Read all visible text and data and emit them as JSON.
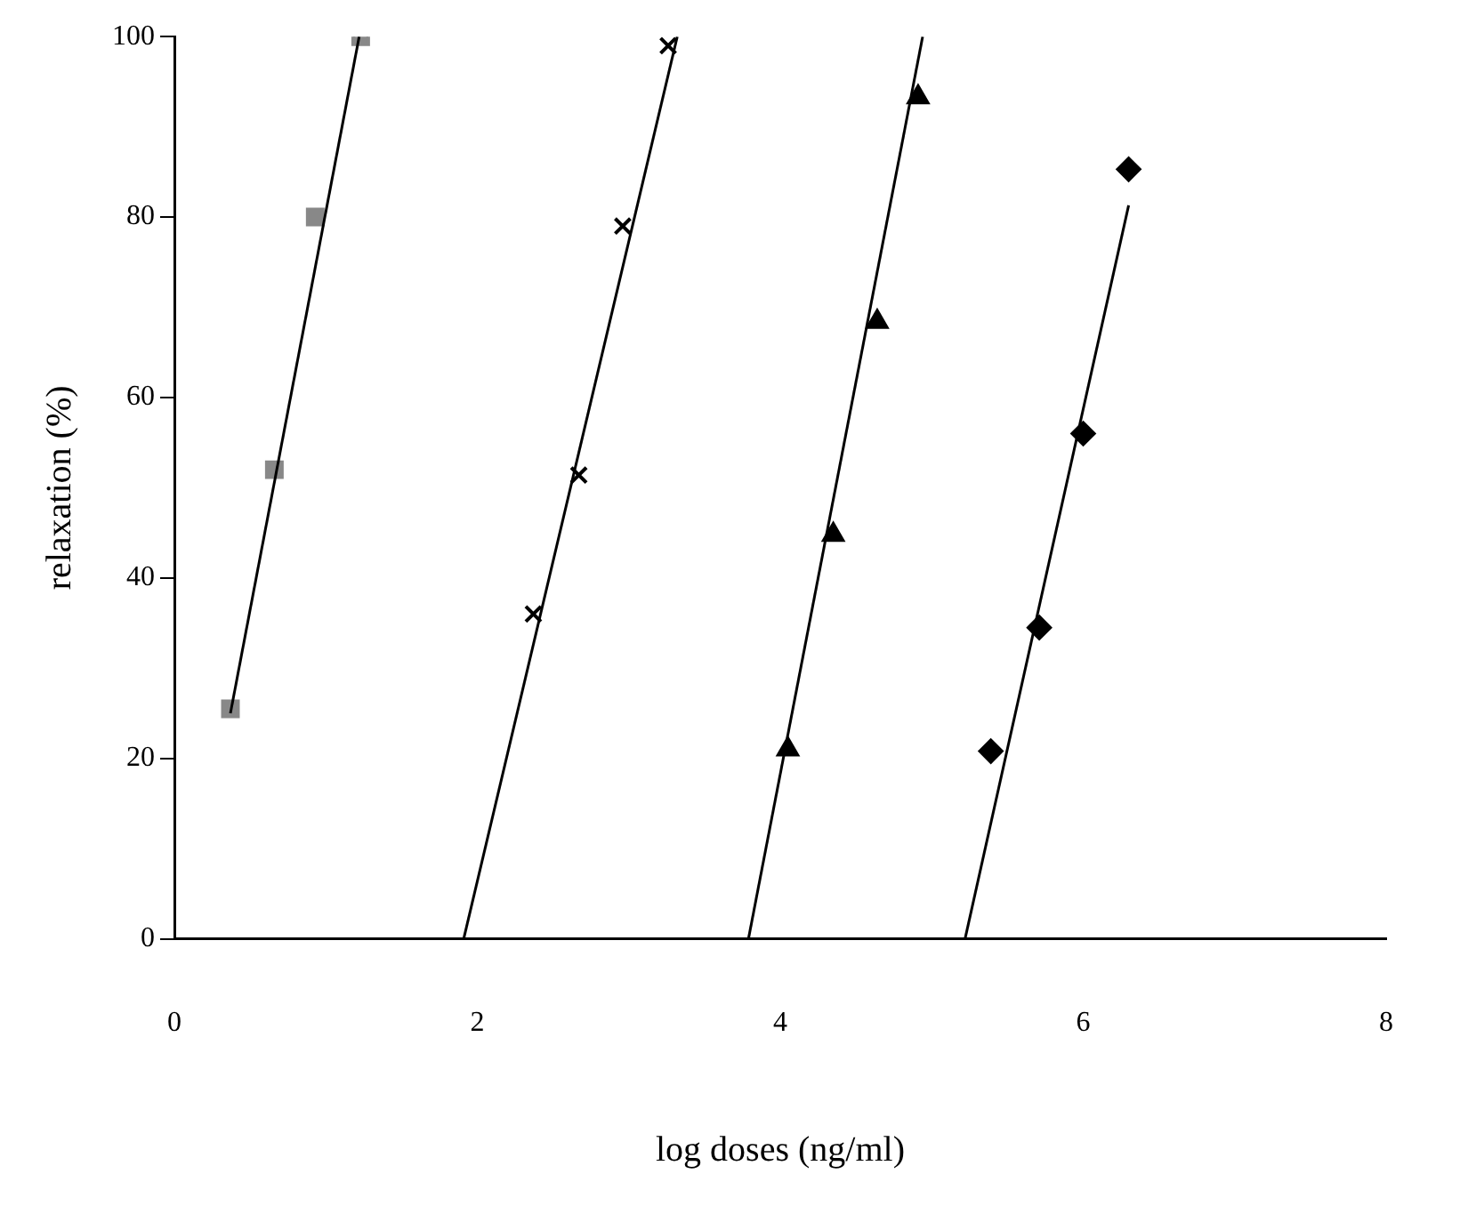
{
  "chart_data": {
    "type": "scatter",
    "xlabel": "log doses (ng/ml)",
    "ylabel": "relaxation (%)",
    "xlim": [
      0,
      8
    ],
    "xticks": [
      0,
      2,
      4,
      6,
      8
    ],
    "ylim": [
      0,
      100
    ],
    "yticks": [
      0,
      20,
      40,
      60,
      80,
      100
    ],
    "grid": false,
    "legend": false,
    "series": [
      {
        "marker": "square",
        "color": "#888888",
        "x": [
          0.37,
          0.66,
          0.93,
          1.23
        ],
        "values": [
          25.5,
          52,
          80,
          100
        ]
      },
      {
        "marker": "cross",
        "color": "#000000",
        "x": [
          2.37,
          2.67,
          2.96,
          3.26
        ],
        "values": [
          36,
          51.4,
          79,
          99
        ]
      },
      {
        "marker": "triangle",
        "color": "#000000",
        "x": [
          4.05,
          4.35,
          4.64,
          4.91
        ],
        "values": [
          21,
          44.8,
          68.4,
          93.3
        ]
      },
      {
        "marker": "diamond",
        "color": "#000000",
        "x": [
          5.39,
          5.71,
          6.0,
          6.3
        ],
        "values": [
          20.8,
          34.5,
          56,
          85.3
        ]
      },
      {
        "type": "line",
        "marker": "none",
        "color": "#000000",
        "x": [
          0.37,
          1.22
        ],
        "values": [
          25,
          100
        ]
      },
      {
        "type": "line",
        "marker": "none",
        "color": "#000000",
        "x": [
          1.91,
          3.32
        ],
        "values": [
          0,
          100
        ]
      },
      {
        "type": "line",
        "marker": "none",
        "color": "#000000",
        "x": [
          3.79,
          4.94
        ],
        "values": [
          0,
          100
        ]
      },
      {
        "type": "line",
        "marker": "none",
        "color": "#000000",
        "x": [
          5.22,
          6.3
        ],
        "values": [
          0,
          81.3
        ]
      }
    ]
  }
}
